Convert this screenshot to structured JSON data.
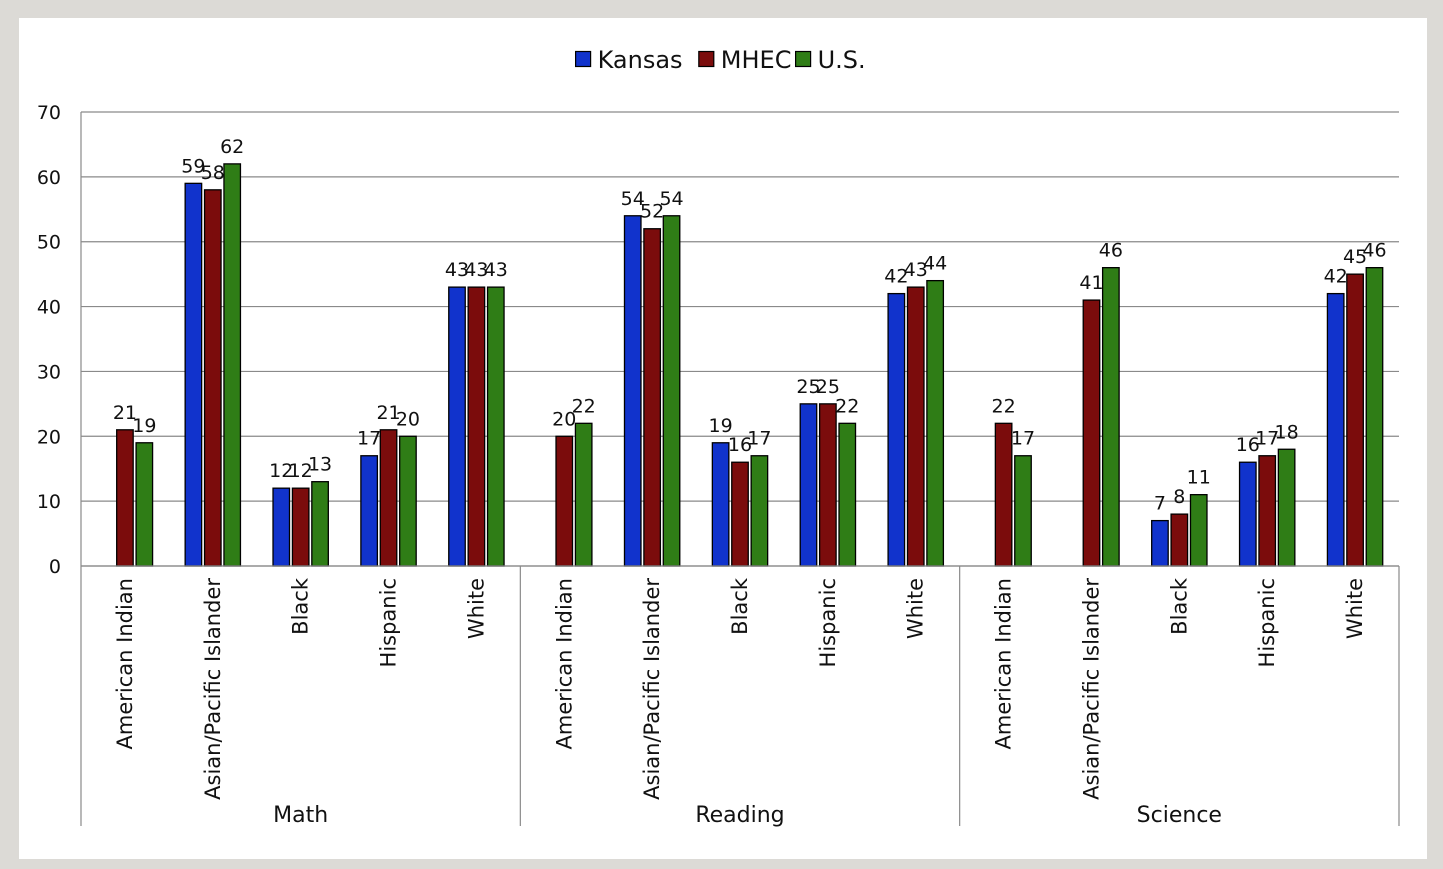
{
  "chart_data": {
    "type": "bar",
    "legend_position": "top-center",
    "grid": true,
    "ylim": [
      0,
      70
    ],
    "yticks": [
      0,
      10,
      20,
      30,
      40,
      50,
      60,
      70
    ],
    "series": [
      {
        "name": "Kansas",
        "color": "#1133cc"
      },
      {
        "name": "MHEC",
        "color": "#7b0c0c"
      },
      {
        "name": "U.S.",
        "color": "#2f7d16"
      }
    ],
    "groups": [
      {
        "name": "Math",
        "categories": [
          "American Indian",
          "Asian/Pacific Islander",
          "Black",
          "Hispanic",
          "White"
        ],
        "values": [
          [
            null,
            21,
            19
          ],
          [
            59,
            58,
            62
          ],
          [
            12,
            12,
            13
          ],
          [
            17,
            21,
            20
          ],
          [
            43,
            43,
            43
          ]
        ]
      },
      {
        "name": "Reading",
        "categories": [
          "American Indian",
          "Asian/Pacific Islander",
          "Black",
          "Hispanic",
          "White"
        ],
        "values": [
          [
            null,
            20,
            22
          ],
          [
            54,
            52,
            54
          ],
          [
            19,
            16,
            17
          ],
          [
            25,
            25,
            22
          ],
          [
            42,
            43,
            44
          ]
        ]
      },
      {
        "name": "Science",
        "categories": [
          "American Indian",
          "Asian/Pacific Islander",
          "Black",
          "Hispanic",
          "White"
        ],
        "values": [
          [
            null,
            22,
            17
          ],
          [
            null,
            41,
            46
          ],
          [
            7,
            8,
            11
          ],
          [
            16,
            17,
            18
          ],
          [
            42,
            45,
            46
          ]
        ]
      }
    ]
  }
}
